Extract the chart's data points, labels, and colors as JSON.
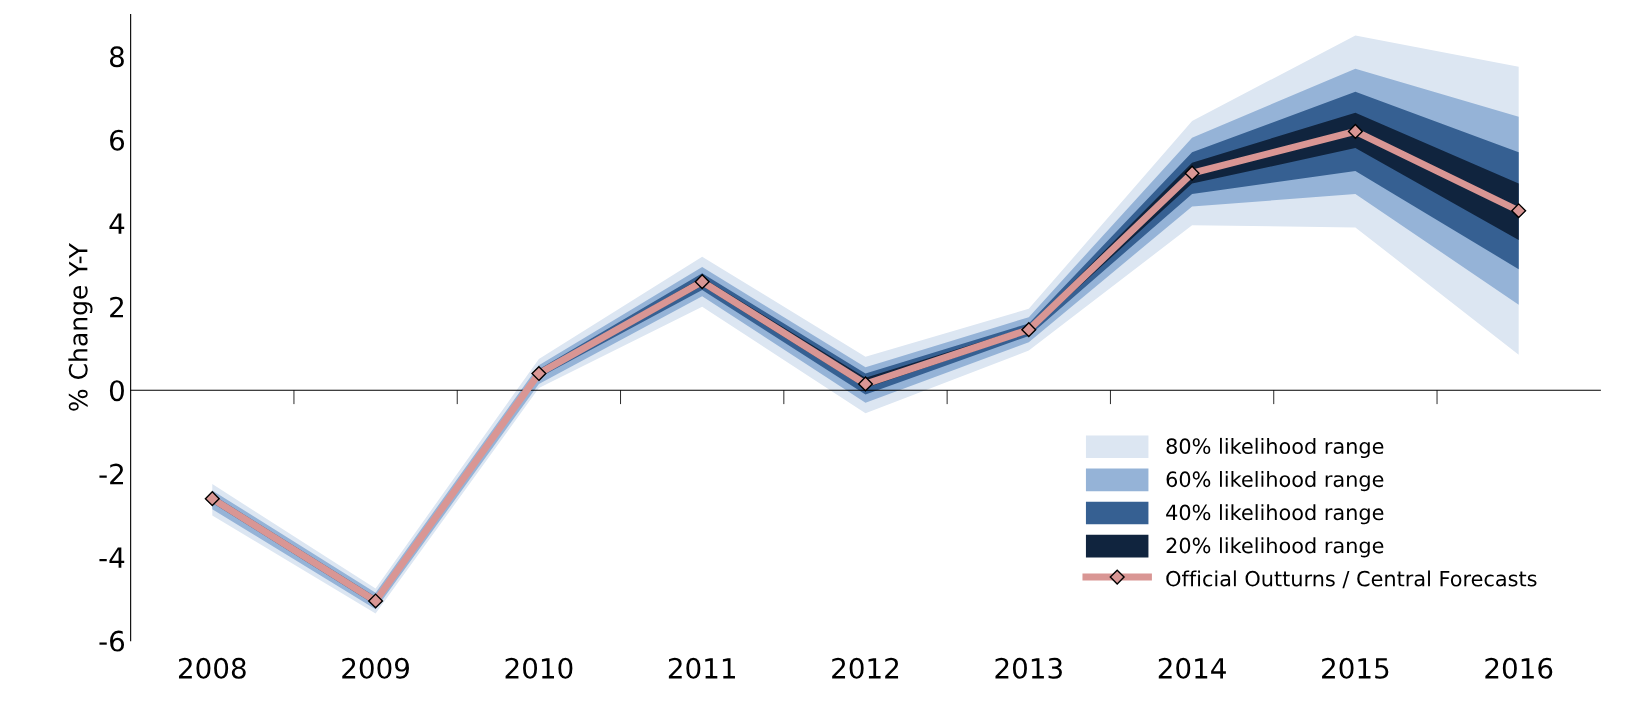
{
  "chart_data": {
    "type": "line",
    "ylabel": "% Change Y-Y",
    "categories": [
      "2008",
      "2009",
      "2010",
      "2011",
      "2012",
      "2013",
      "2014",
      "2015",
      "2016"
    ],
    "series": [
      {
        "name": "80% likelihood range",
        "color": "#dce6f2",
        "values": [
          null,
          null,
          null,
          null,
          null,
          null,
          null,
          null,
          null
        ],
        "lower": [
          -3.0,
          -5.35,
          0.05,
          2.0,
          -0.55,
          0.95,
          3.95,
          3.9,
          0.85
        ],
        "upper": [
          -2.25,
          -4.75,
          0.75,
          3.2,
          0.8,
          1.95,
          6.45,
          8.5,
          7.75
        ]
      },
      {
        "name": "60% likelihood range",
        "color": "#95b3d7",
        "values": [
          null,
          null,
          null,
          null,
          null,
          null,
          null,
          null,
          null
        ],
        "lower": [
          -2.85,
          -5.25,
          0.15,
          2.25,
          -0.3,
          1.15,
          4.4,
          4.7,
          2.05
        ],
        "upper": [
          -2.4,
          -4.85,
          0.6,
          2.95,
          0.55,
          1.75,
          6.05,
          7.7,
          6.55
        ]
      },
      {
        "name": "40% likelihood range",
        "color": "#366092",
        "values": [
          null,
          null,
          null,
          null,
          null,
          null,
          null,
          null,
          null
        ],
        "lower": [
          -2.7,
          -5.15,
          0.3,
          2.4,
          -0.1,
          1.3,
          4.7,
          5.25,
          2.9
        ],
        "upper": [
          -2.5,
          -4.95,
          0.5,
          2.8,
          0.4,
          1.6,
          5.7,
          7.15,
          5.7
        ]
      },
      {
        "name": "20% likelihood range",
        "color": "#10243e",
        "values": [
          null,
          null,
          null,
          null,
          null,
          null,
          null,
          null,
          null
        ],
        "lower": [
          -2.65,
          -5.1,
          0.35,
          2.5,
          0.05,
          1.38,
          4.95,
          5.8,
          3.6
        ],
        "upper": [
          -2.55,
          -5.0,
          0.45,
          2.7,
          0.3,
          1.52,
          5.45,
          6.65,
          4.95
        ]
      },
      {
        "type": "line",
        "marker": "diamond",
        "name": "Official Outturns / Central Forecasts",
        "color": "#d99694",
        "values": [
          -2.6,
          -5.05,
          0.4,
          2.6,
          0.15,
          1.45,
          5.2,
          6.2,
          4.3
        ]
      }
    ],
    "ylim": [
      -6,
      9
    ],
    "yticks": [
      -6,
      -4,
      -2,
      0,
      2,
      4,
      6,
      8
    ],
    "legend": "bottom right"
  }
}
